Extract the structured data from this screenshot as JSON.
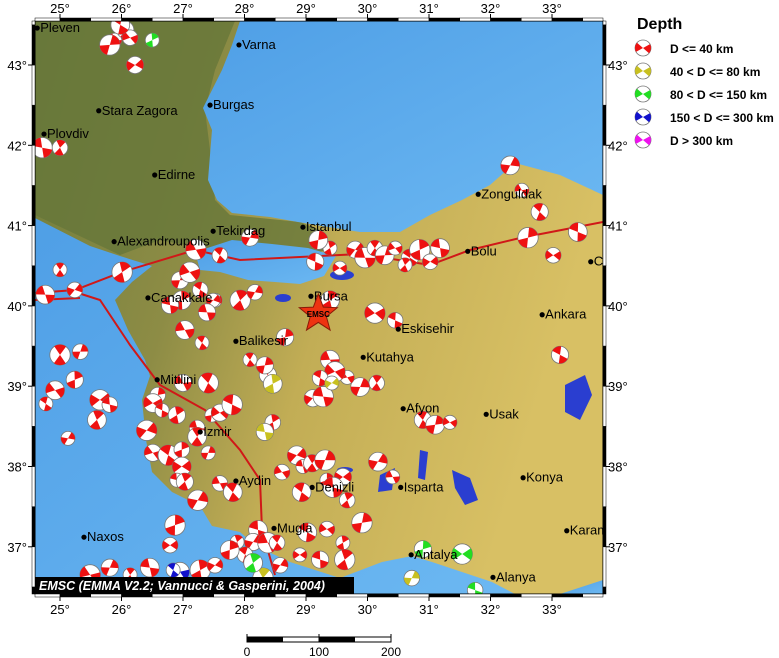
{
  "map": {
    "lon_ticks": [
      25,
      26,
      27,
      28,
      29,
      30,
      31,
      32,
      33
    ],
    "lat_ticks": [
      37,
      38,
      39,
      40,
      41,
      42,
      43
    ],
    "degree_symbol": "°",
    "extent": {
      "lon": [
        24.6,
        33.8
      ],
      "lat": [
        36.4,
        43.55
      ]
    },
    "colors": {
      "sea": "#5aa9ec",
      "land_low": "#6f7d3c",
      "land_high": "#c9b356",
      "plate_boundary": "#d01818"
    },
    "credit": "EMSC (EMMA V2.2; Vannucci & Gasperini, 2004)",
    "epicenter": {
      "label": "EMSC",
      "lon": 29.2,
      "lat": 39.9,
      "icon": "star-icon",
      "color": "#ee3311"
    },
    "scale_bar": {
      "labels": [
        "0",
        "100",
        "200"
      ]
    }
  },
  "legend": {
    "title": "Depth",
    "items": [
      {
        "label": "D <= 40 km",
        "color": "#ee1111"
      },
      {
        "label": "40 < D <= 80 km",
        "color": "#c8c020"
      },
      {
        "label": "80 < D <= 150 km",
        "color": "#22dd22"
      },
      {
        "label": "150 < D <= 300 km",
        "color": "#1111cc"
      },
      {
        "label": "D > 300 km",
        "color": "#ee11ee"
      }
    ]
  },
  "cities": [
    {
      "name": "Pleven",
      "lon": 24.63,
      "lat": 43.46
    },
    {
      "name": "Varna",
      "lon": 27.91,
      "lat": 43.25
    },
    {
      "name": "Stara Zagora",
      "lon": 25.63,
      "lat": 42.43
    },
    {
      "name": "Burgas",
      "lon": 27.44,
      "lat": 42.5
    },
    {
      "name": "Plovdiv",
      "lon": 24.74,
      "lat": 42.14
    },
    {
      "name": "Edirne",
      "lon": 26.54,
      "lat": 41.63
    },
    {
      "name": "Tekirdag",
      "lon": 27.49,
      "lat": 40.93
    },
    {
      "name": "Istanbul",
      "lon": 28.95,
      "lat": 40.98
    },
    {
      "name": "Alexandroupolis",
      "lon": 25.88,
      "lat": 40.8
    },
    {
      "name": "Canakkale",
      "lon": 26.43,
      "lat": 40.1
    },
    {
      "name": "Bursa",
      "lon": 29.08,
      "lat": 40.12
    },
    {
      "name": "Bolu",
      "lon": 31.63,
      "lat": 40.68
    },
    {
      "name": "Zonguldak",
      "lon": 31.8,
      "lat": 41.39
    },
    {
      "name": "Ankara",
      "lon": 32.84,
      "lat": 39.89
    },
    {
      "name": "Cankiri",
      "lon": 33.63,
      "lat": 40.55
    },
    {
      "name": "Eskisehir",
      "lon": 30.5,
      "lat": 39.71
    },
    {
      "name": "Balikesir",
      "lon": 27.86,
      "lat": 39.56
    },
    {
      "name": "Kutahya",
      "lon": 29.93,
      "lat": 39.36
    },
    {
      "name": "Afyon",
      "lon": 30.58,
      "lat": 38.72
    },
    {
      "name": "Usak",
      "lon": 31.93,
      "lat": 38.65
    },
    {
      "name": "Mitilini",
      "lon": 26.58,
      "lat": 39.08
    },
    {
      "name": "Izmir",
      "lon": 27.28,
      "lat": 38.43
    },
    {
      "name": "Aydin",
      "lon": 27.86,
      "lat": 37.82
    },
    {
      "name": "Denizli",
      "lon": 29.1,
      "lat": 37.74
    },
    {
      "name": "Isparta",
      "lon": 30.54,
      "lat": 37.74
    },
    {
      "name": "Konya",
      "lon": 32.53,
      "lat": 37.86
    },
    {
      "name": "Mugla",
      "lon": 28.48,
      "lat": 37.23
    },
    {
      "name": "Naxos",
      "lon": 25.39,
      "lat": 37.12
    },
    {
      "name": "Karaman",
      "lon": 33.24,
      "lat": 37.2
    },
    {
      "name": "Antalya",
      "lon": 30.71,
      "lat": 36.9
    },
    {
      "name": "Alanya",
      "lon": 32.04,
      "lat": 36.62
    }
  ],
  "events_fields": [
    "lon",
    "lat",
    "depth_class"
  ],
  "events": [
    [
      25.89,
      43.31,
      0
    ],
    [
      26.06,
      43.44,
      0
    ],
    [
      25.81,
      43.25,
      0
    ],
    [
      26.14,
      43.34,
      0
    ],
    [
      25.98,
      43.5,
      0
    ],
    [
      26.5,
      43.31,
      2
    ],
    [
      26.22,
      43.0,
      0
    ],
    [
      24.71,
      41.97,
      0
    ],
    [
      25.0,
      41.97,
      0
    ],
    [
      32.32,
      41.75,
      0
    ],
    [
      32.51,
      41.44,
      0
    ],
    [
      32.8,
      41.17,
      0
    ],
    [
      32.61,
      40.85,
      0
    ],
    [
      33.02,
      40.63,
      0
    ],
    [
      33.42,
      40.92,
      0
    ],
    [
      29.39,
      40.72,
      0
    ],
    [
      29.8,
      40.7,
      0
    ],
    [
      29.96,
      40.6,
      0
    ],
    [
      30.12,
      40.72,
      0
    ],
    [
      30.28,
      40.63,
      0
    ],
    [
      30.45,
      40.72,
      0
    ],
    [
      30.69,
      40.6,
      0
    ],
    [
      30.85,
      40.7,
      0
    ],
    [
      31.02,
      40.55,
      0
    ],
    [
      31.18,
      40.72,
      0
    ],
    [
      30.61,
      40.51,
      0
    ],
    [
      28.09,
      40.85,
      0
    ],
    [
      27.21,
      40.7,
      0
    ],
    [
      27.6,
      40.63,
      0
    ],
    [
      29.2,
      40.82,
      0
    ],
    [
      29.55,
      40.47,
      0
    ],
    [
      29.15,
      40.55,
      0
    ],
    [
      26.01,
      40.42,
      0
    ],
    [
      25.24,
      40.2,
      0
    ],
    [
      24.76,
      40.14,
      0
    ],
    [
      25.0,
      40.45,
      0
    ],
    [
      26.95,
      40.32,
      0
    ],
    [
      27.11,
      40.42,
      0
    ],
    [
      27.28,
      40.2,
      0
    ],
    [
      26.98,
      40.07,
      0
    ],
    [
      27.52,
      40.07,
      0
    ],
    [
      26.79,
      40.01,
      0
    ],
    [
      27.93,
      40.07,
      0
    ],
    [
      28.17,
      40.17,
      0
    ],
    [
      27.03,
      39.7,
      0
    ],
    [
      27.31,
      39.54,
      0
    ],
    [
      28.66,
      39.61,
      0
    ],
    [
      30.12,
      39.91,
      0
    ],
    [
      30.45,
      39.82,
      0
    ],
    [
      29.39,
      40.07,
      0
    ],
    [
      27.49,
      40.07,
      0
    ],
    [
      27.39,
      39.92,
      0
    ],
    [
      25.0,
      39.39,
      0
    ],
    [
      25.33,
      39.43,
      0
    ],
    [
      24.92,
      38.95,
      0
    ],
    [
      24.77,
      38.78,
      0
    ],
    [
      25.24,
      39.08,
      0
    ],
    [
      25.65,
      38.83,
      0
    ],
    [
      25.81,
      38.77,
      0
    ],
    [
      25.6,
      38.58,
      0
    ],
    [
      25.13,
      38.35,
      0
    ],
    [
      27.0,
      39.04,
      0
    ],
    [
      27.41,
      39.04,
      0
    ],
    [
      26.59,
      38.89,
      0
    ],
    [
      26.51,
      38.79,
      0
    ],
    [
      26.66,
      38.7,
      0
    ],
    [
      26.9,
      38.64,
      0
    ],
    [
      26.41,
      38.45,
      0
    ],
    [
      27.23,
      38.48,
      0
    ],
    [
      27.23,
      38.37,
      0
    ],
    [
      27.41,
      38.17,
      0
    ],
    [
      26.51,
      38.17,
      0
    ],
    [
      26.76,
      38.14,
      0
    ],
    [
      26.98,
      38.21,
      0
    ],
    [
      26.98,
      38.0,
      0
    ],
    [
      26.9,
      37.83,
      0
    ],
    [
      27.03,
      37.81,
      0
    ],
    [
      27.24,
      37.58,
      0
    ],
    [
      27.6,
      37.79,
      0
    ],
    [
      27.81,
      37.68,
      0
    ],
    [
      27.47,
      38.64,
      0
    ],
    [
      27.6,
      38.67,
      0
    ],
    [
      27.8,
      38.77,
      0
    ],
    [
      28.46,
      38.55,
      0
    ],
    [
      28.85,
      38.14,
      0
    ],
    [
      28.95,
      38.0,
      0
    ],
    [
      29.1,
      38.04,
      0
    ],
    [
      29.31,
      38.08,
      0
    ],
    [
      28.61,
      37.93,
      0
    ],
    [
      28.93,
      37.68,
      0
    ],
    [
      29.34,
      37.83,
      0
    ],
    [
      29.6,
      37.87,
      0
    ],
    [
      29.44,
      37.74,
      0
    ],
    [
      29.67,
      37.58,
      0
    ],
    [
      30.17,
      38.06,
      0
    ],
    [
      30.41,
      37.87,
      0
    ],
    [
      30.9,
      38.58,
      0
    ],
    [
      29.91,
      37.3,
      0
    ],
    [
      29.34,
      37.22,
      0
    ],
    [
      29.02,
      37.18,
      0
    ],
    [
      29.6,
      37.05,
      0
    ],
    [
      29.11,
      38.85,
      0
    ],
    [
      29.28,
      38.87,
      0
    ],
    [
      30.15,
      39.04,
      0
    ],
    [
      29.88,
      38.99,
      0
    ],
    [
      29.67,
      39.11,
      0
    ],
    [
      28.38,
      39.14,
      0
    ],
    [
      26.87,
      37.27,
      0
    ],
    [
      26.79,
      37.02,
      0
    ],
    [
      28.22,
      37.21,
      0
    ],
    [
      27.88,
      37.06,
      0
    ],
    [
      28.14,
      37.06,
      0
    ],
    [
      28.38,
      37.05,
      0
    ],
    [
      28.53,
      37.05,
      0
    ],
    [
      31.1,
      38.52,
      0
    ],
    [
      31.34,
      38.55,
      0
    ],
    [
      33.13,
      39.39,
      0
    ],
    [
      27.28,
      36.71,
      0
    ],
    [
      27.52,
      36.77,
      0
    ],
    [
      26.46,
      36.74,
      0
    ],
    [
      26.14,
      36.65,
      0
    ],
    [
      25.81,
      36.74,
      0
    ],
    [
      25.49,
      36.65,
      0
    ],
    [
      28.01,
      36.9,
      0
    ],
    [
      27.76,
      36.96,
      0
    ],
    [
      28.9,
      36.9,
      0
    ],
    [
      29.23,
      36.84,
      0
    ],
    [
      29.63,
      36.84,
      0
    ],
    [
      28.58,
      36.77,
      0
    ],
    [
      29.39,
      39.33,
      0
    ],
    [
      28.09,
      39.33,
      0
    ],
    [
      28.33,
      39.26,
      0
    ],
    [
      29.47,
      39.18,
      0
    ],
    [
      29.23,
      39.1,
      0
    ],
    [
      28.46,
      39.03,
      1
    ],
    [
      29.42,
      39.04,
      1
    ],
    [
      28.33,
      38.43,
      1
    ],
    [
      28.3,
      36.61,
      1
    ],
    [
      30.72,
      36.61,
      1
    ],
    [
      26.95,
      36.69,
      3
    ],
    [
      26.84,
      36.71,
      3
    ],
    [
      30.9,
      36.97,
      2
    ],
    [
      31.54,
      36.91,
      2
    ],
    [
      31.75,
      36.46,
      2
    ],
    [
      28.14,
      36.8,
      2
    ]
  ]
}
